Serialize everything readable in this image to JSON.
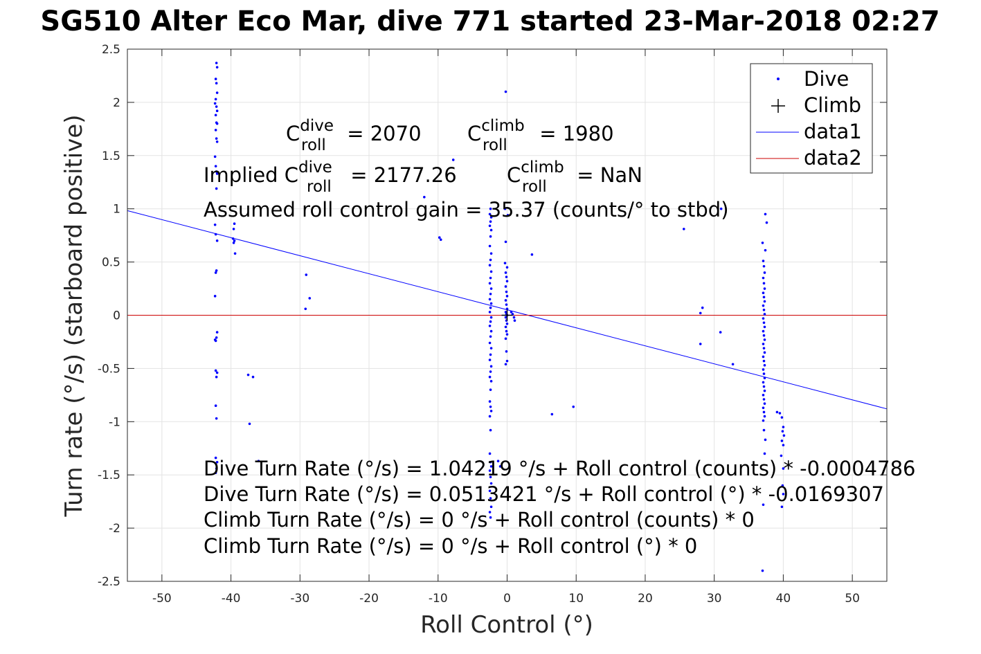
{
  "chart_data": {
    "type": "scatter",
    "title": "SG510 Alter Eco Mar, dive 771 started 23-Mar-2018 02:27",
    "xlabel": "Roll Control (°)",
    "ylabel": "Turn rate (°/s) (starboard positive)",
    "xlim": [
      -55,
      55
    ],
    "ylim": [
      -2.5,
      2.5
    ],
    "grid": true,
    "x_ticks": [
      -50,
      -40,
      -30,
      -20,
      -10,
      0,
      10,
      20,
      30,
      40,
      50
    ],
    "y_ticks": [
      2.5,
      2,
      1.5,
      1,
      0.5,
      0,
      -0.5,
      -1,
      -1.5,
      -2,
      -2.5
    ],
    "x_tick_labels": [
      "-50",
      "-40",
      "-30",
      "-20",
      "-10",
      "0",
      "10",
      "20",
      "30",
      "40",
      "50"
    ],
    "y_tick_labels": [
      "2.5",
      "2",
      "1.5",
      "1",
      "0.5",
      "0",
      "-0.5",
      "-1",
      "-1.5",
      "-2",
      "-2.5"
    ],
    "legend": {
      "placement": "top-right",
      "entries": [
        {
          "label": "Dive",
          "marker": "dot",
          "color": "#0000ff"
        },
        {
          "label": "Climb",
          "marker": "plus",
          "color": "#000000"
        },
        {
          "label": "data1",
          "marker": "line",
          "color": "#0000ff"
        },
        {
          "label": "data2",
          "marker": "line",
          "color": "#cc0000"
        }
      ]
    },
    "series": [
      {
        "name": "Dive",
        "color": "#0000ff",
        "points": [
          [
            -42.1,
            2.37
          ],
          [
            -42.0,
            2.33
          ],
          [
            -42.2,
            2.22
          ],
          [
            -42.1,
            2.18
          ],
          [
            -42.0,
            2.09
          ],
          [
            -42.2,
            2.03
          ],
          [
            -42.3,
            1.99
          ],
          [
            -42.1,
            1.96
          ],
          [
            -42.0,
            1.92
          ],
          [
            -42.2,
            1.88
          ],
          [
            -42.1,
            1.81
          ],
          [
            -42.0,
            1.8
          ],
          [
            -42.2,
            1.74
          ],
          [
            -42.1,
            1.66
          ],
          [
            -42.0,
            1.63
          ],
          [
            -42.3,
            1.49
          ],
          [
            -42.2,
            1.4
          ],
          [
            -42.1,
            1.35
          ],
          [
            -42.0,
            1.33
          ],
          [
            -42.1,
            1.19
          ],
          [
            -42.3,
            0.85
          ],
          [
            -42.2,
            0.76
          ],
          [
            -42.0,
            0.7
          ],
          [
            -42.1,
            0.42
          ],
          [
            -42.2,
            0.4
          ],
          [
            -42.3,
            0.18
          ],
          [
            -42.0,
            -0.16
          ],
          [
            -42.1,
            -0.21
          ],
          [
            -42.2,
            -0.24
          ],
          [
            -42.3,
            -0.23
          ],
          [
            -42.2,
            -0.52
          ],
          [
            -42.0,
            -0.54
          ],
          [
            -42.1,
            -0.58
          ],
          [
            -42.2,
            -0.85
          ],
          [
            -42.1,
            -0.97
          ],
          [
            -42.2,
            -1.34
          ],
          [
            -42.0,
            -1.38
          ],
          [
            -42.1,
            -1.44
          ],
          [
            -42.2,
            -1.48
          ],
          [
            -39.5,
            0.86
          ],
          [
            -39.6,
            0.81
          ],
          [
            -39.7,
            0.72
          ],
          [
            -39.5,
            0.7
          ],
          [
            -39.6,
            0.68
          ],
          [
            -39.4,
            0.58
          ],
          [
            -37.5,
            -0.56
          ],
          [
            -36.8,
            -0.58
          ],
          [
            -37.3,
            -1.02
          ],
          [
            -36.0,
            -1.37
          ],
          [
            -29.1,
            0.38
          ],
          [
            -28.6,
            0.16
          ],
          [
            -29.2,
            0.06
          ],
          [
            -12.0,
            1.11
          ],
          [
            -7.8,
            1.46
          ],
          [
            -9.8,
            0.73
          ],
          [
            -9.6,
            0.71
          ],
          [
            -2.4,
            1.0
          ],
          [
            -2.5,
            0.95
          ],
          [
            -2.3,
            0.92
          ],
          [
            -2.4,
            0.88
          ],
          [
            -2.5,
            0.84
          ],
          [
            -2.3,
            0.8
          ],
          [
            -2.4,
            0.74
          ],
          [
            -2.5,
            0.65
          ],
          [
            -2.3,
            0.58
          ],
          [
            -2.4,
            0.52
          ],
          [
            -2.5,
            0.47
          ],
          [
            -2.3,
            0.41
          ],
          [
            -2.4,
            0.35
          ],
          [
            -2.5,
            0.3
          ],
          [
            -2.3,
            0.25
          ],
          [
            -2.4,
            0.2
          ],
          [
            -2.5,
            0.15
          ],
          [
            -2.3,
            0.11
          ],
          [
            -2.4,
            0.07
          ],
          [
            -2.5,
            0.03
          ],
          [
            -2.3,
            -0.02
          ],
          [
            -2.4,
            -0.06
          ],
          [
            -2.5,
            -0.1
          ],
          [
            -2.3,
            -0.15
          ],
          [
            -2.4,
            -0.2
          ],
          [
            -2.5,
            -0.26
          ],
          [
            -2.3,
            -0.31
          ],
          [
            -2.4,
            -0.37
          ],
          [
            -2.5,
            -0.42
          ],
          [
            -2.3,
            -0.48
          ],
          [
            -2.4,
            -0.53
          ],
          [
            -2.5,
            -0.58
          ],
          [
            -2.3,
            -0.62
          ],
          [
            -2.4,
            -0.7
          ],
          [
            -2.5,
            -0.81
          ],
          [
            -2.4,
            -0.86
          ],
          [
            -2.3,
            -0.9
          ],
          [
            -2.5,
            -0.95
          ],
          [
            -2.4,
            -1.08
          ],
          [
            -2.5,
            -1.3
          ],
          [
            -2.4,
            -1.38
          ],
          [
            -2.3,
            -1.42
          ],
          [
            -2.5,
            -1.46
          ],
          [
            -2.4,
            -1.52
          ],
          [
            -2.3,
            -1.58
          ],
          [
            -2.5,
            -1.65
          ],
          [
            -2.4,
            -1.72
          ],
          [
            -2.3,
            -1.8
          ],
          [
            -2.5,
            -1.85
          ],
          [
            -2.4,
            -1.9
          ],
          [
            -1.3,
            -1.37
          ],
          [
            -1.0,
            -1.42
          ],
          [
            -0.2,
            2.1
          ],
          [
            -0.3,
            1.0
          ],
          [
            0.1,
            0.94
          ],
          [
            -0.2,
            0.69
          ],
          [
            -0.3,
            0.49
          ],
          [
            0.0,
            0.45
          ],
          [
            -0.2,
            0.4
          ],
          [
            -0.1,
            0.36
          ],
          [
            0.0,
            0.32
          ],
          [
            -0.2,
            0.27
          ],
          [
            -0.1,
            0.22
          ],
          [
            0.0,
            0.18
          ],
          [
            -0.2,
            0.14
          ],
          [
            -0.1,
            0.1
          ],
          [
            0.0,
            0.06
          ],
          [
            -0.2,
            0.03
          ],
          [
            -0.1,
            0.01
          ],
          [
            0.0,
            0.0
          ],
          [
            -0.2,
            -0.02
          ],
          [
            -0.1,
            -0.05
          ],
          [
            0.0,
            -0.08
          ],
          [
            -0.2,
            -0.11
          ],
          [
            -0.1,
            -0.15
          ],
          [
            0.0,
            -0.18
          ],
          [
            -0.2,
            -0.22
          ],
          [
            -0.1,
            -0.34
          ],
          [
            0.0,
            -0.43
          ],
          [
            -0.2,
            -0.46
          ],
          [
            0.8,
            0.01
          ],
          [
            1.0,
            -0.02
          ],
          [
            0.6,
            0.03
          ],
          [
            1.1,
            -0.05
          ],
          [
            3.6,
            0.57
          ],
          [
            6.5,
            -0.93
          ],
          [
            9.6,
            -0.86
          ],
          [
            25.6,
            0.81
          ],
          [
            28.3,
            0.07
          ],
          [
            28.0,
            0.02
          ],
          [
            28.0,
            -0.27
          ],
          [
            30.9,
            -0.16
          ],
          [
            32.7,
            -0.46
          ],
          [
            31.0,
            1.0
          ],
          [
            37.4,
            0.95
          ],
          [
            37.6,
            0.87
          ],
          [
            37.0,
            0.68
          ],
          [
            37.4,
            0.61
          ],
          [
            37.1,
            0.51
          ],
          [
            37.2,
            0.46
          ],
          [
            37.3,
            0.4
          ],
          [
            37.1,
            0.35
          ],
          [
            37.2,
            0.3
          ],
          [
            37.3,
            0.25
          ],
          [
            37.1,
            0.21
          ],
          [
            37.2,
            0.17
          ],
          [
            37.3,
            0.13
          ],
          [
            37.1,
            0.09
          ],
          [
            37.2,
            0.05
          ],
          [
            37.3,
            0.01
          ],
          [
            37.1,
            -0.03
          ],
          [
            37.2,
            -0.07
          ],
          [
            37.3,
            -0.11
          ],
          [
            37.1,
            -0.15
          ],
          [
            37.2,
            -0.19
          ],
          [
            37.3,
            -0.23
          ],
          [
            37.1,
            -0.27
          ],
          [
            37.2,
            -0.31
          ],
          [
            37.3,
            -0.35
          ],
          [
            37.1,
            -0.39
          ],
          [
            37.2,
            -0.43
          ],
          [
            37.3,
            -0.47
          ],
          [
            37.1,
            -0.51
          ],
          [
            37.2,
            -0.55
          ],
          [
            37.3,
            -0.59
          ],
          [
            37.1,
            -0.63
          ],
          [
            37.2,
            -0.67
          ],
          [
            37.3,
            -0.71
          ],
          [
            37.1,
            -0.75
          ],
          [
            37.2,
            -0.79
          ],
          [
            37.3,
            -0.83
          ],
          [
            37.1,
            -0.87
          ],
          [
            37.2,
            -0.91
          ],
          [
            37.3,
            -0.95
          ],
          [
            37.1,
            -0.99
          ],
          [
            37.2,
            -1.08
          ],
          [
            37.4,
            -1.17
          ],
          [
            37.3,
            -1.3
          ],
          [
            37.1,
            -1.78
          ],
          [
            37.0,
            -2.4
          ],
          [
            39.1,
            -0.91
          ],
          [
            39.5,
            -0.92
          ],
          [
            39.8,
            -0.96
          ],
          [
            40.0,
            -1.05
          ],
          [
            39.9,
            -1.09
          ],
          [
            40.1,
            -1.13
          ],
          [
            39.8,
            -1.18
          ],
          [
            40.0,
            -1.22
          ],
          [
            39.7,
            -1.32
          ],
          [
            40.0,
            -1.44
          ],
          [
            39.9,
            -1.6
          ],
          [
            40.0,
            -1.68
          ],
          [
            39.8,
            -1.8
          ]
        ]
      },
      {
        "name": "Climb",
        "color": "#000000",
        "points": [
          [
            0.0,
            0.0
          ]
        ]
      }
    ],
    "lines": [
      {
        "name": "data1",
        "color": "#0000ff",
        "x": [
          -55,
          55
        ],
        "y": [
          0.982578,
          -0.879799
        ]
      },
      {
        "name": "data2",
        "color": "#cc0000",
        "x": [
          -55,
          55
        ],
        "y": [
          0,
          0
        ]
      }
    ],
    "annotations": {
      "c_roll_dive": {
        "base": "C",
        "sup": "dive",
        "sub": "roll",
        "value": " = 2070"
      },
      "c_roll_climb": {
        "base": "C",
        "sup": "climb",
        "sub": "roll",
        "value": " = 1980"
      },
      "implied_dive": {
        "prefix": "Implied C",
        "sup": "dive",
        "sub": "roll",
        "value": " = 2177.26"
      },
      "implied_climb": {
        "base": "C",
        "sup": "climb",
        "sub": "roll",
        "value": " = NaN"
      },
      "gain": "Assumed roll control gain = 35.37 (counts/° to stbd)",
      "fits": [
        "Dive Turn Rate (°/s) = 1.04219 °/s + Roll control (counts) * -0.0004786",
        "Dive Turn Rate (°/s) = 0.0513421 °/s + Roll control (°) * -0.0169307",
        "Climb Turn Rate (°/s) = 0 °/s + Roll control (counts) * 0",
        "Climb Turn Rate (°/s) = 0 °/s + Roll control (°) * 0"
      ]
    }
  }
}
